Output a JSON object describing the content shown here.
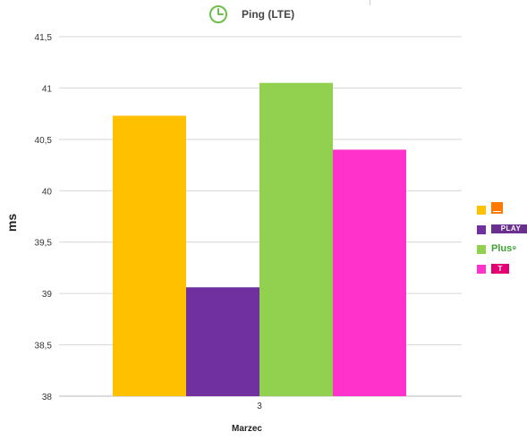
{
  "header": {
    "title": "Ping (LTE)",
    "icon": "clock-icon",
    "icon_color": "#6dbf4b"
  },
  "chart_data": {
    "type": "bar",
    "title": "Ping (LTE)",
    "xlabel": "Marzec",
    "ylabel": "ms",
    "categories": [
      "3"
    ],
    "ylim": [
      38,
      41.5
    ],
    "yticks": [
      "38",
      "38,5",
      "39",
      "39,5",
      "40",
      "40,5",
      "41",
      "41,5"
    ],
    "grid": true,
    "legend_position": "right",
    "series": [
      {
        "values": [
          40.73
        ],
        "color": "#ffc000",
        "logo": "orange-logo"
      },
      {
        "values": [
          39.06
        ],
        "color": "#7030a0",
        "logo": "play-logo",
        "logo_text": "PLAY"
      },
      {
        "values": [
          41.05
        ],
        "color": "#92d050",
        "logo": "plus-logo",
        "logo_text": "Plus"
      },
      {
        "values": [
          40.4
        ],
        "color": "#ff33cc",
        "logo": "t-mobile-logo",
        "logo_text": "T"
      }
    ]
  }
}
